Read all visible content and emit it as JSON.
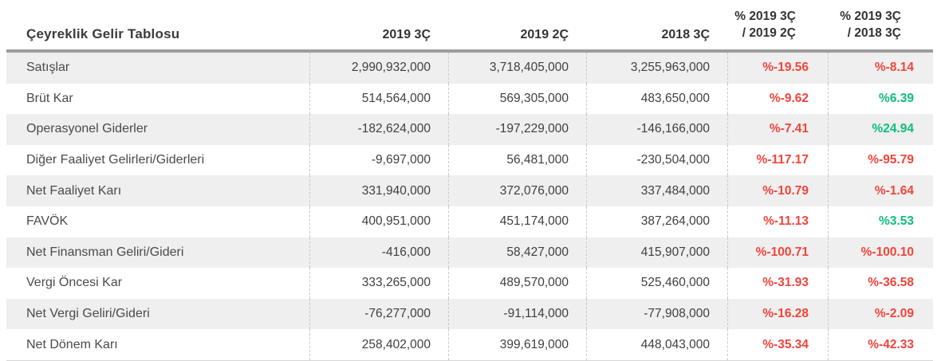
{
  "chart_data": {
    "type": "table",
    "title": "Çeyreklik Gelir Tablosu",
    "columns": [
      "2019 3Ç",
      "2019 2Ç",
      "2018 3Ç",
      "% 2019 3Ç / 2019 2Ç",
      "% 2019 3Ç / 2018 3Ç"
    ],
    "pct_columns": [
      {
        "line1": "% 2019 3Ç",
        "line2": "/ 2019 2Ç"
      },
      {
        "line1": "% 2019 3Ç",
        "line2": "/ 2018 3Ç"
      }
    ],
    "rows": [
      {
        "label": "Satışlar",
        "values": [
          "2,990,932,000",
          "3,718,405,000",
          "3,255,963,000"
        ],
        "pct": [
          {
            "text": "%-19.56",
            "dir": "neg"
          },
          {
            "text": "%-8.14",
            "dir": "neg"
          }
        ]
      },
      {
        "label": "Brüt Kar",
        "values": [
          "514,564,000",
          "569,305,000",
          "483,650,000"
        ],
        "pct": [
          {
            "text": "%-9.62",
            "dir": "neg"
          },
          {
            "text": "%6.39",
            "dir": "pos"
          }
        ]
      },
      {
        "label": "Operasyonel Giderler",
        "values": [
          "-182,624,000",
          "-197,229,000",
          "-146,166,000"
        ],
        "pct": [
          {
            "text": "%-7.41",
            "dir": "neg"
          },
          {
            "text": "%24.94",
            "dir": "pos"
          }
        ]
      },
      {
        "label": "Diğer Faaliyet Gelirleri/Giderleri",
        "values": [
          "-9,697,000",
          "56,481,000",
          "-230,504,000"
        ],
        "pct": [
          {
            "text": "%-117.17",
            "dir": "neg"
          },
          {
            "text": "%-95.79",
            "dir": "neg"
          }
        ]
      },
      {
        "label": "Net Faaliyet Karı",
        "values": [
          "331,940,000",
          "372,076,000",
          "337,484,000"
        ],
        "pct": [
          {
            "text": "%-10.79",
            "dir": "neg"
          },
          {
            "text": "%-1.64",
            "dir": "neg"
          }
        ]
      },
      {
        "label": "FAVÖK",
        "values": [
          "400,951,000",
          "451,174,000",
          "387,264,000"
        ],
        "pct": [
          {
            "text": "%-11.13",
            "dir": "neg"
          },
          {
            "text": "%3.53",
            "dir": "pos"
          }
        ]
      },
      {
        "label": "Net Finansman Geliri/Gideri",
        "values": [
          "-416,000",
          "58,427,000",
          "415,907,000"
        ],
        "pct": [
          {
            "text": "%-100.71",
            "dir": "neg"
          },
          {
            "text": "%-100.10",
            "dir": "neg"
          }
        ]
      },
      {
        "label": "Vergi Öncesi Kar",
        "values": [
          "333,265,000",
          "489,570,000",
          "525,460,000"
        ],
        "pct": [
          {
            "text": "%-31.93",
            "dir": "neg"
          },
          {
            "text": "%-36.58",
            "dir": "neg"
          }
        ]
      },
      {
        "label": "Net Vergi Geliri/Gideri",
        "values": [
          "-76,277,000",
          "-91,114,000",
          "-77,908,000"
        ],
        "pct": [
          {
            "text": "%-16.28",
            "dir": "neg"
          },
          {
            "text": "%-2.09",
            "dir": "neg"
          }
        ]
      },
      {
        "label": "Net Dönem Karı",
        "values": [
          "258,402,000",
          "399,619,000",
          "448,043,000"
        ],
        "pct": [
          {
            "text": "%-35.34",
            "dir": "neg"
          },
          {
            "text": "%-42.33",
            "dir": "neg"
          }
        ]
      }
    ]
  },
  "colors": {
    "negative": "#f0453c",
    "positive": "#10bd7b",
    "stripe": "#efefef",
    "header_rule": "#9d9d9d",
    "dashed_separator": "#c9c9c9"
  }
}
